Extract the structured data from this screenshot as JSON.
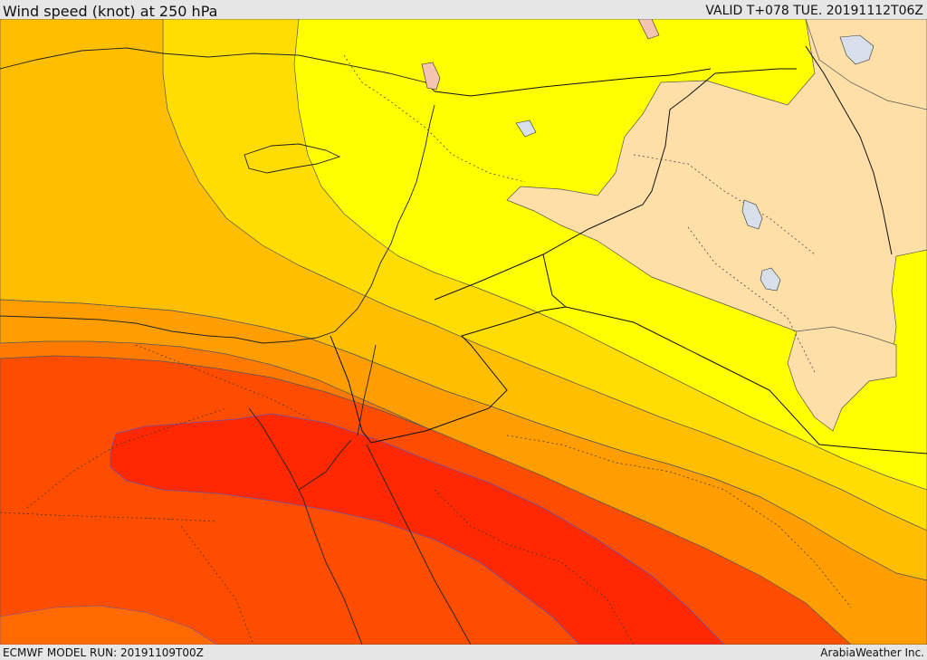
{
  "header": {
    "title": "Wind speed (knot) at 250 hPa",
    "valid_time": "VALID T+078 TUE. 20191112T06Z"
  },
  "footer": {
    "model_run": "ECMWF MODEL RUN: 20191109T00Z",
    "credit": "ArabiaWeather Inc."
  },
  "map": {
    "variable": "wind speed",
    "level": "250 hPa",
    "units": "knot",
    "color_bands": [
      "#ffdfa8",
      "#ffff00",
      "#ffdd00",
      "#ffbf00",
      "#ff9e00",
      "#ff7a00",
      "#ff4d00",
      "#ff2800"
    ],
    "land_color": "#ffdfa8",
    "lake_color": "#d7dfea"
  }
}
